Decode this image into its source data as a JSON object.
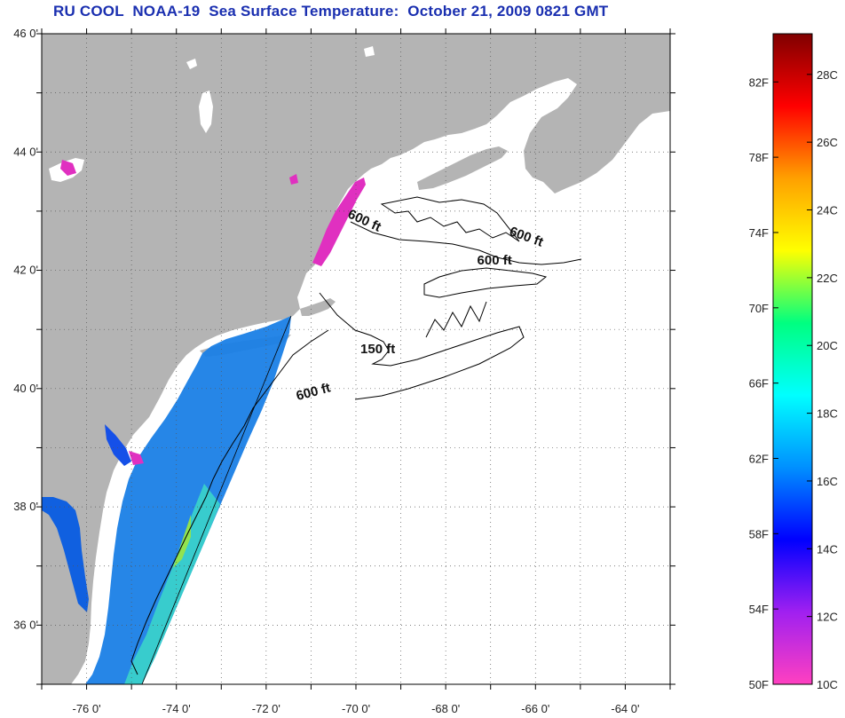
{
  "title": "RU COOL  NOAA-19  Sea Surface Temperature:  October 21, 2009 0821 GMT",
  "map": {
    "lon_range": [
      -77,
      -63
    ],
    "lat_range": [
      35,
      46
    ],
    "lon_ticks": [
      {
        "value": -76,
        "label": "-76 0'"
      },
      {
        "value": -74,
        "label": "-74 0'"
      },
      {
        "value": -72,
        "label": "-72 0'"
      },
      {
        "value": -70,
        "label": "-70 0'"
      },
      {
        "value": -68,
        "label": "-68 0'"
      },
      {
        "value": -66,
        "label": "-66 0'"
      },
      {
        "value": -64,
        "label": "-64 0'"
      }
    ],
    "lat_ticks": [
      {
        "value": 46,
        "label": "46 0'"
      },
      {
        "value": 44,
        "label": "44 0'"
      },
      {
        "value": 42,
        "label": "42 0'"
      },
      {
        "value": 40,
        "label": "40 0'"
      },
      {
        "value": 38,
        "label": "38 0'"
      },
      {
        "value": 36,
        "label": "36 0'"
      }
    ],
    "grid": true,
    "land_color": "#b4b4b4",
    "contour_labels": [
      {
        "text": "600 ft",
        "lon": -70.2,
        "lat": 42.9,
        "rotate": 25
      },
      {
        "text": "600 ft",
        "lon": -66.6,
        "lat": 42.6,
        "rotate": 20
      },
      {
        "text": "600 ft",
        "lon": -67.3,
        "lat": 42.1,
        "rotate": 0
      },
      {
        "text": "150 ft",
        "lon": -69.9,
        "lat": 40.6,
        "rotate": 0
      },
      {
        "text": "600 ft",
        "lon": -71.3,
        "lat": 39.8,
        "rotate": -15
      }
    ]
  },
  "colorbar": {
    "fahrenheit_labels": [
      {
        "value": 50,
        "label": "50F"
      },
      {
        "value": 54,
        "label": "54F"
      },
      {
        "value": 58,
        "label": "58F"
      },
      {
        "value": 62,
        "label": "62F"
      },
      {
        "value": 66,
        "label": "66F"
      },
      {
        "value": 70,
        "label": "70F"
      },
      {
        "value": 74,
        "label": "74F"
      },
      {
        "value": 78,
        "label": "78F"
      },
      {
        "value": 82,
        "label": "82F"
      }
    ],
    "celsius_labels": [
      {
        "value": 10,
        "label": "10C"
      },
      {
        "value": 12,
        "label": "12C"
      },
      {
        "value": 14,
        "label": "14C"
      },
      {
        "value": 16,
        "label": "16C"
      },
      {
        "value": 18,
        "label": "18C"
      },
      {
        "value": 20,
        "label": "20C"
      },
      {
        "value": 22,
        "label": "22C"
      },
      {
        "value": 24,
        "label": "24C"
      },
      {
        "value": 26,
        "label": "26C"
      },
      {
        "value": 28,
        "label": "28C"
      }
    ],
    "range_c": [
      10,
      29.2
    ],
    "colors": [
      "#ff40c0",
      "#a020f0",
      "#0000ff",
      "#0090ff",
      "#00ffff",
      "#00ff80",
      "#ffff00",
      "#ffa000",
      "#ff0000",
      "#800000"
    ]
  }
}
